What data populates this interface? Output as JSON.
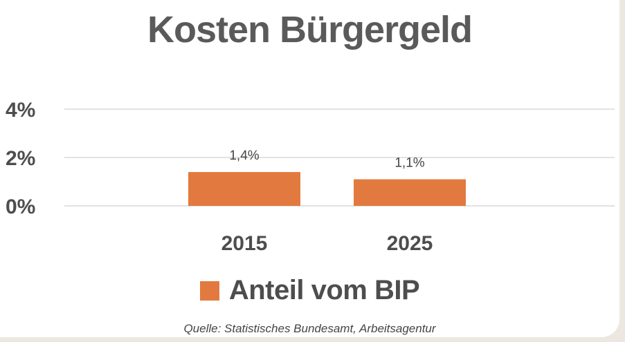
{
  "colors": {
    "bar": "#e27a3f",
    "title": "#5a5a5a",
    "gridline": "#d9d9d9"
  },
  "chart_data": {
    "type": "bar",
    "title": "Kosten Bürgergeld",
    "categories": [
      "2015",
      "2025"
    ],
    "series": [
      {
        "name": "Anteil vom BIP",
        "values": [
          1.4,
          1.1
        ],
        "labels": [
          "1,4%",
          "1,1%"
        ]
      }
    ],
    "y_ticks": [
      "0%",
      "2%",
      "4%"
    ],
    "ylim": [
      0,
      4
    ],
    "grid": true,
    "legend_position": "bottom",
    "source": "Quelle: Statistisches Bundesamt, Arbeitsagentur"
  }
}
